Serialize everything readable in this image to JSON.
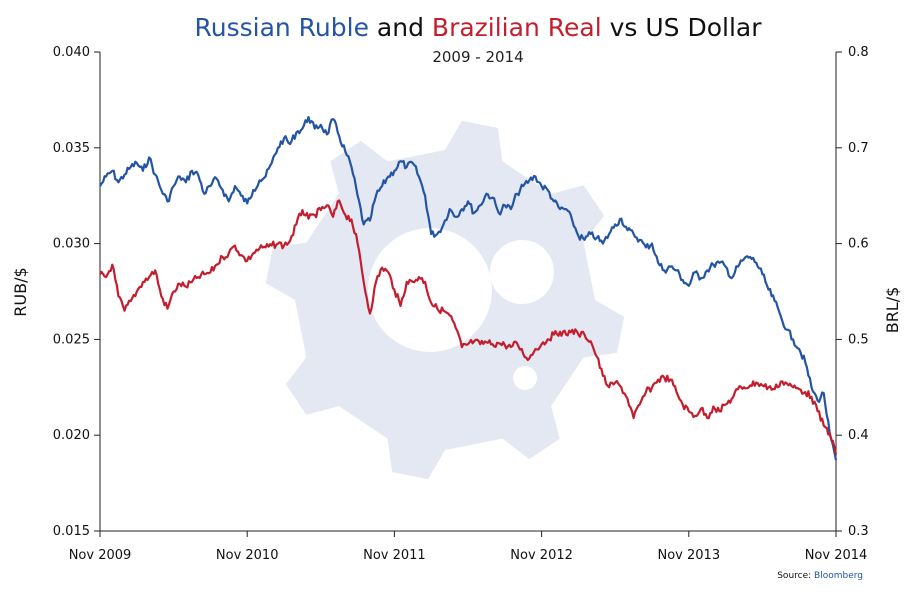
{
  "colors": {
    "rub": "#2454a4",
    "brl": "#c41e2e",
    "watermark": "#e3e8f2",
    "text": "#111111",
    "source_link": "#2454a4"
  },
  "title": {
    "part1": "Russian Ruble",
    "part2": " and ",
    "part3": "Brazilian Real",
    "part4": " vs US Dollar"
  },
  "watermark_icon": "gear-logo-icon",
  "chart_data": {
    "type": "line",
    "title": "Russian Ruble and Brazilian Real vs US Dollar",
    "subtitle": "2009 - 2014",
    "xlabel": "",
    "ylabel": "RUB/$",
    "y2label": "BRL/$",
    "xlim": [
      0,
      60
    ],
    "ylim": [
      0.015,
      0.04
    ],
    "y2lim": [
      0.3,
      0.8
    ],
    "x_ticks": [
      {
        "x": 0,
        "label": "Nov 2009"
      },
      {
        "x": 12,
        "label": "Nov 2010"
      },
      {
        "x": 24,
        "label": "Nov 2011"
      },
      {
        "x": 36,
        "label": "Nov 2012"
      },
      {
        "x": 48,
        "label": "Nov 2013"
      },
      {
        "x": 60,
        "label": "Nov 2014"
      }
    ],
    "y_ticks": [
      "0.015",
      "0.020",
      "0.025",
      "0.030",
      "0.035",
      "0.040"
    ],
    "y2_ticks": [
      "0.3",
      "0.4",
      "0.5",
      "0.6",
      "0.7",
      "0.8"
    ],
    "series": [
      {
        "name": "Russian Ruble",
        "axis": "left",
        "x": [
          0,
          0.5,
          1,
          1.5,
          2,
          2.5,
          3,
          3.5,
          4,
          4.5,
          5,
          5.5,
          6,
          6.5,
          7,
          7.5,
          8,
          8.5,
          9,
          9.5,
          10,
          10.5,
          11,
          11.5,
          12,
          12.5,
          13,
          13.5,
          14,
          14.5,
          15,
          15.5,
          16,
          16.5,
          17,
          17.5,
          18,
          18.5,
          19,
          19.5,
          20,
          20.5,
          21,
          21.5,
          22,
          22.5,
          23,
          23.5,
          24,
          24.5,
          25,
          25.5,
          26,
          26.5,
          27,
          27.5,
          28,
          28.5,
          29,
          29.5,
          30,
          30.5,
          31,
          31.5,
          32,
          32.5,
          33,
          33.5,
          34,
          34.5,
          35,
          35.5,
          36,
          36.5,
          37,
          37.5,
          38,
          38.5,
          39,
          39.5,
          40,
          40.5,
          41,
          41.5,
          42,
          42.5,
          43,
          43.5,
          44,
          44.5,
          45,
          45.5,
          46,
          46.5,
          47,
          47.5,
          48,
          48.5,
          49,
          49.5,
          50,
          50.5,
          51,
          51.5,
          52,
          52.5,
          53,
          53.5,
          54,
          54.5,
          55,
          55.5,
          56,
          56.5,
          57,
          57.5,
          58,
          58.5,
          59,
          59.5,
          60
        ],
        "values": [
          0.033,
          0.0335,
          0.0338,
          0.0332,
          0.0336,
          0.034,
          0.0342,
          0.0338,
          0.0345,
          0.0336,
          0.0328,
          0.0322,
          0.033,
          0.0335,
          0.0332,
          0.0338,
          0.0336,
          0.0326,
          0.033,
          0.0334,
          0.0328,
          0.0322,
          0.033,
          0.0325,
          0.0321,
          0.0328,
          0.0333,
          0.0335,
          0.0342,
          0.035,
          0.0355,
          0.0352,
          0.0358,
          0.036,
          0.0366,
          0.036,
          0.0362,
          0.0357,
          0.0365,
          0.0356,
          0.0348,
          0.034,
          0.0325,
          0.031,
          0.0312,
          0.0325,
          0.033,
          0.0335,
          0.0338,
          0.0343,
          0.034,
          0.0342,
          0.0335,
          0.0325,
          0.0305,
          0.0305,
          0.031,
          0.0318,
          0.0314,
          0.0318,
          0.0322,
          0.0316,
          0.032,
          0.0326,
          0.0324,
          0.0316,
          0.032,
          0.0318,
          0.0326,
          0.033,
          0.0333,
          0.0335,
          0.033,
          0.0328,
          0.0322,
          0.0318,
          0.0318,
          0.0312,
          0.0304,
          0.0302,
          0.0305,
          0.0303,
          0.03,
          0.0305,
          0.031,
          0.0313,
          0.0307,
          0.0305,
          0.0302,
          0.0298,
          0.03,
          0.029,
          0.0286,
          0.0288,
          0.0286,
          0.0281,
          0.0278,
          0.0285,
          0.0282,
          0.0286,
          0.0289,
          0.029,
          0.0288,
          0.0282,
          0.0288,
          0.0292,
          0.0293,
          0.029,
          0.0284,
          0.0276,
          0.027,
          0.0262,
          0.0255,
          0.025,
          0.0245,
          0.0238,
          0.0225,
          0.0218,
          0.0222,
          0.02,
          0.0187
        ]
      },
      {
        "name": "Brazilian Real",
        "axis": "right",
        "x": [
          0,
          0.5,
          1,
          1.5,
          2,
          2.5,
          3,
          3.5,
          4,
          4.5,
          5,
          5.5,
          6,
          6.5,
          7,
          7.5,
          8,
          8.5,
          9,
          9.5,
          10,
          10.5,
          11,
          11.5,
          12,
          12.5,
          13,
          13.5,
          14,
          14.5,
          15,
          15.5,
          16,
          16.5,
          17,
          17.5,
          18,
          18.5,
          19,
          19.5,
          20,
          20.5,
          21,
          21.5,
          22,
          22.5,
          23,
          23.5,
          24,
          24.5,
          25,
          25.5,
          26,
          26.5,
          27,
          27.5,
          28,
          28.5,
          29,
          29.5,
          30,
          30.5,
          31,
          31.5,
          32,
          32.5,
          33,
          33.5,
          34,
          34.5,
          35,
          35.5,
          36,
          36.5,
          37,
          37.5,
          38,
          38.5,
          39,
          39.5,
          40,
          40.5,
          41,
          41.5,
          42,
          42.5,
          43,
          43.5,
          44,
          44.5,
          45,
          45.5,
          46,
          46.5,
          47,
          47.5,
          48,
          48.5,
          49,
          49.5,
          50,
          50.5,
          51,
          51.5,
          52,
          52.5,
          53,
          53.5,
          54,
          54.5,
          55,
          55.5,
          56,
          56.5,
          57,
          57.5,
          58,
          58.5,
          59,
          59.5,
          60
        ],
        "values": [
          0.568,
          0.565,
          0.578,
          0.545,
          0.53,
          0.54,
          0.55,
          0.56,
          0.565,
          0.572,
          0.545,
          0.532,
          0.55,
          0.558,
          0.555,
          0.56,
          0.565,
          0.568,
          0.57,
          0.578,
          0.586,
          0.59,
          0.598,
          0.588,
          0.582,
          0.59,
          0.595,
          0.596,
          0.598,
          0.6,
          0.598,
          0.603,
          0.62,
          0.635,
          0.626,
          0.63,
          0.635,
          0.64,
          0.628,
          0.645,
          0.63,
          0.625,
          0.6,
          0.56,
          0.527,
          0.56,
          0.575,
          0.57,
          0.552,
          0.535,
          0.56,
          0.56,
          0.565,
          0.56,
          0.538,
          0.532,
          0.53,
          0.525,
          0.512,
          0.492,
          0.495,
          0.498,
          0.495,
          0.497,
          0.495,
          0.496,
          0.494,
          0.492,
          0.496,
          0.485,
          0.48,
          0.49,
          0.495,
          0.5,
          0.505,
          0.508,
          0.505,
          0.51,
          0.505,
          0.505,
          0.498,
          0.482,
          0.462,
          0.45,
          0.455,
          0.45,
          0.438,
          0.418,
          0.432,
          0.445,
          0.45,
          0.458,
          0.46,
          0.458,
          0.445,
          0.432,
          0.425,
          0.42,
          0.428,
          0.418,
          0.43,
          0.425,
          0.432,
          0.438,
          0.448,
          0.45,
          0.452,
          0.455,
          0.452,
          0.45,
          0.448,
          0.456,
          0.454,
          0.45,
          0.448,
          0.445,
          0.44,
          0.425,
          0.41,
          0.402,
          0.38
        ]
      }
    ],
    "source_label": "Source: ",
    "source_name": "Bloomberg"
  }
}
